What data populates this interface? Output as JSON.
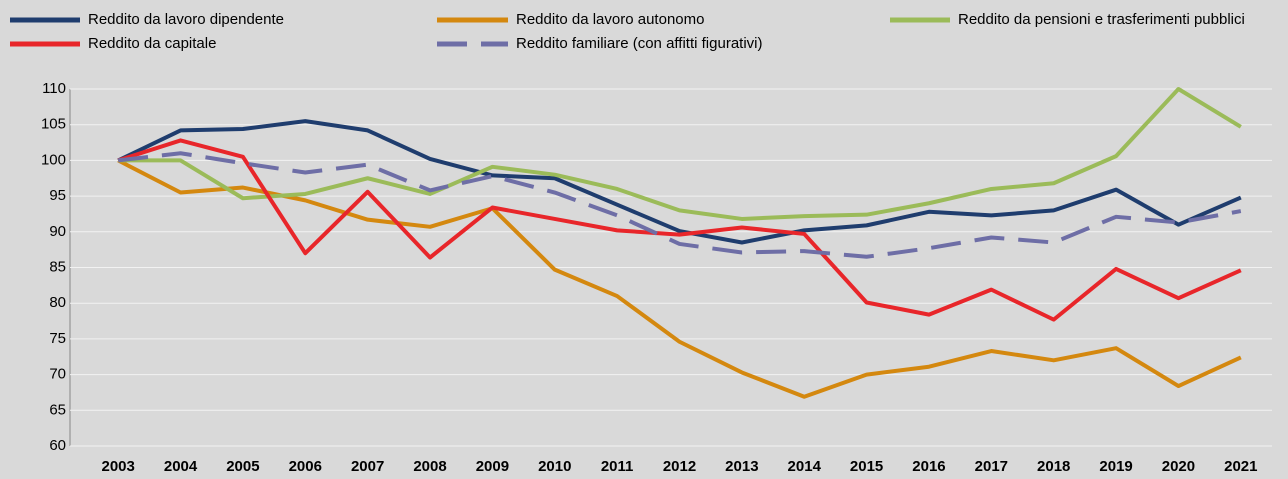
{
  "chart_data": {
    "type": "line",
    "categories": [
      "2003",
      "2004",
      "2005",
      "2006",
      "2007",
      "2008",
      "2009",
      "2010",
      "2011",
      "2012",
      "2013",
      "2014",
      "2015",
      "2016",
      "2017",
      "2018",
      "2019",
      "2020",
      "2021"
    ],
    "series": [
      {
        "name": "Reddito da lavoro dipendente",
        "color": "#1f3d6e",
        "values": [
          100,
          104.2,
          104.4,
          105.5,
          104.2,
          100.2,
          97.9,
          97.5,
          93.8,
          90.1,
          88.5,
          90.2,
          90.9,
          92.8,
          92.3,
          93,
          95.9,
          91,
          94.8
        ]
      },
      {
        "name": "Reddito da lavoro autonomo",
        "color": "#d4880f",
        "values": [
          100,
          95.5,
          96.2,
          94.4,
          91.7,
          90.7,
          93.3,
          84.7,
          81,
          74.6,
          70.3,
          66.9,
          70,
          71.1,
          73.3,
          72,
          73.7,
          68.4,
          72.4
        ]
      },
      {
        "name": "Reddito da pensioni e trasferimenti pubblici",
        "color": "#9bbb59",
        "values": [
          100,
          100,
          94.7,
          95.3,
          97.5,
          95.3,
          99.1,
          98,
          96,
          93,
          91.8,
          92.2,
          92.4,
          94,
          96,
          96.8,
          100.6,
          110,
          104.7
        ]
      },
      {
        "name": "Reddito da capitale",
        "color": "#e8262a",
        "values": [
          100,
          102.8,
          100.5,
          87,
          95.6,
          86.4,
          93.4,
          91.8,
          90.2,
          89.6,
          90.6,
          89.7,
          80.1,
          78.4,
          81.9,
          77.7,
          84.8,
          80.7,
          84.6
        ]
      },
      {
        "name": "Reddito familiare (con affitti figurativi)",
        "color": "#6e6ea6",
        "dashed": true,
        "values": [
          100,
          101,
          99.6,
          98.3,
          99.4,
          95.8,
          97.8,
          95.5,
          92.3,
          88.3,
          87.1,
          87.3,
          86.5,
          87.7,
          89.2,
          88.5,
          92.1,
          91.3,
          92.9
        ]
      }
    ],
    "ylim": [
      60,
      110
    ],
    "yticks": [
      60,
      65,
      70,
      75,
      80,
      85,
      90,
      95,
      100,
      105,
      110
    ],
    "grid": true,
    "legend": "top"
  }
}
